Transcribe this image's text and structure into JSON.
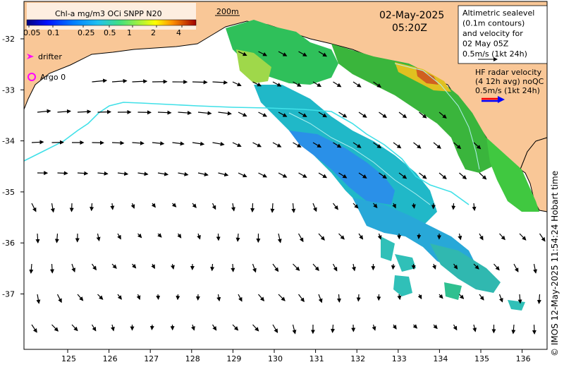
{
  "colorbar": {
    "title": "Chl-a mg/m3 OCi SNPP N20",
    "ticks": [
      "0.05",
      "0.1",
      "0.25",
      "0.5",
      "1",
      "2",
      "4"
    ]
  },
  "scale_bar_label": "200m",
  "date": "02-May-2025",
  "time": "05:20Z",
  "legend": {
    "drifter": "drifter",
    "argo": "Argo 0",
    "altimetry_lines": [
      "Altimetric sealevel",
      "(0.1m contours)",
      "and velocity for",
      "02 May 05Z",
      "0.5m/s (1kt 24h)"
    ],
    "hf_radar_lines": [
      "HF radar velocity",
      "(4 12h avg) noQC",
      "0.5m/s (1kt 24h)"
    ]
  },
  "axes": {
    "lon_ticks": [
      "125",
      "126",
      "127",
      "128",
      "129",
      "130",
      "131",
      "132",
      "133",
      "134",
      "135",
      "136"
    ],
    "lat_ticks": [
      "-32",
      "-33",
      "-34",
      "-35",
      "-36",
      "-37"
    ]
  },
  "credit": "© IMOS 12-May-2025 11:54:24 Hobart time",
  "colors": {
    "land": "#f9c797",
    "contour": "#40e0e8",
    "arrow": "#000000",
    "drifter": "#ff00ff",
    "radar_red": "#ff0000",
    "radar_blue": "#0000ff"
  }
}
